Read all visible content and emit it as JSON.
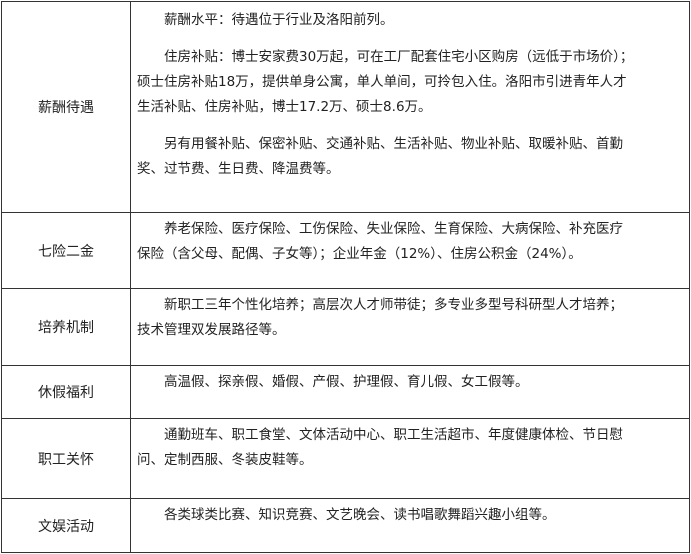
{
  "rows": [
    {
      "label": "薪酬待遇",
      "paragraphs": [
        [
          "薪酬水平：待遇位于行业及洛阳前列。"
        ],
        [
          "住房补贴：博士安家费30万起，可在工厂配套住宅小区购房（远低于市场价）；",
          "硕士住房补贴18万，提供单身公寓，单人单间，可拎包入住。洛阳市引进青年人才",
          "生活补贴、住房补贴，博士17.2万、硕士8.6万。"
        ],
        [
          "另有用餐补贴、保密补贴、交通补贴、生活补贴、物业补贴、取暖补贴、首勤",
          "奖、过节费、生日费、降温费等。"
        ]
      ]
    },
    {
      "label": "七险二金",
      "paragraphs": [
        [
          "养老保险、医疗保险、工伤保险、失业保险、生育保险、大病保险、补充医疗",
          "保险（含父母、配偶、子女等）；企业年金（12%）、住房公积金（24%）。"
        ]
      ]
    },
    {
      "label": "培养机制",
      "paragraphs": [
        [
          "新职工三年个性化培养；高层次人才师带徒；多专业多型号科研型人才培养；",
          "技术管理双发展路径等。"
        ]
      ]
    },
    {
      "label": "休假福利",
      "paragraphs": [
        [
          "高温假、探亲假、婚假、产假、护理假、育儿假、女工假等。"
        ]
      ]
    },
    {
      "label": "职工关怀",
      "paragraphs": [
        [
          "通勤班车、职工食堂、文体活动中心、职工生活超市、年度健康体检、节日慰",
          "问、定制西服、冬装皮鞋等。"
        ]
      ]
    },
    {
      "label": "文娱活动",
      "paragraphs": [
        [
          "各类球类比赛、知识竞赛、文艺晚会、读书唱歌舞蹈兴趣小组等。"
        ]
      ]
    }
  ]
}
